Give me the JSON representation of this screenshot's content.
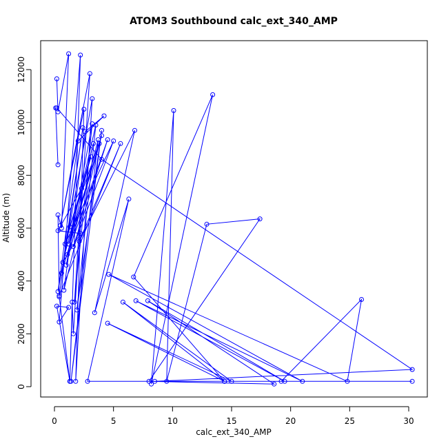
{
  "chart_data": {
    "type": "line",
    "title": "ATOM3 Southbound calc_ext_340_AMP",
    "xlabel": "calc_ext_340_AMP",
    "ylabel": "Altitude (m)",
    "xlim": [
      0,
      30
    ],
    "ylim": [
      0,
      12600
    ],
    "xticks": [
      0,
      5,
      10,
      15,
      20,
      25,
      30
    ],
    "yticks": [
      0,
      2000,
      4000,
      6000,
      8000,
      10000,
      12000
    ],
    "xtick_labels": [
      "0",
      "5",
      "10",
      "15",
      "20",
      "25",
      "30"
    ],
    "ytick_labels": [
      "0",
      "2000",
      "4000",
      "6000",
      "8000",
      "10000",
      "12000"
    ],
    "grid": false,
    "marker": "open-circle",
    "color": "#0000ff",
    "series": [
      {
        "x": [
          0.2,
          0.3,
          1.2,
          0.6,
          0.3,
          0.4,
          1.3,
          0.2,
          1.2,
          0.4,
          2.2,
          1.3,
          1.5,
          1.6,
          3.0,
          0.5,
          2.5,
          1.8,
          3.2,
          0.3,
          2.0,
          4.2,
          2.6,
          0.8,
          3.8,
          1.2,
          3.5,
          1.9,
          4.0,
          1.4,
          3.7,
          1.0,
          3.2,
          1.7,
          2.3,
          0.3,
          2.2,
          0.7,
          3.3,
          1.1,
          4.5,
          1.6,
          5.0,
          0.9,
          3.1,
          1.3,
          4.0,
          0.6,
          2.4,
          0.4,
          5.6,
          2.1,
          6.8,
          3.4,
          6.3,
          2.8,
          14.4,
          4.5,
          15.0,
          5.8,
          14.4,
          6.7,
          13.4,
          8.2,
          10.1,
          9.5,
          12.9,
          17.4,
          8.0,
          18.6,
          7.9,
          19.5,
          6.9,
          21.0,
          4.6,
          24.8,
          26.0,
          19.2,
          30.3,
          8.5,
          30.3,
          4.0,
          0.2,
          0.1,
          0.3
        ],
        "y": [
          11650,
          10400,
          12600,
          6000,
          6500,
          3400,
          200,
          3050,
          3000,
          2450,
          12550,
          200,
          3200,
          2000,
          11850,
          6100,
          10500,
          200,
          10900,
          3600,
          9300,
          10250,
          9650,
          3650,
          9200,
          5400,
          9900,
          2900,
          9700,
          200,
          9350,
          4600,
          9950,
          3200,
          7500,
          5900,
          5800,
          4700,
          9200,
          5000,
          9350,
          5300,
          9300,
          5400,
          8700,
          6050,
          9500,
          4300,
          9800,
          3450,
          9200,
          5500,
          9700,
          2800,
          7100,
          200,
          200,
          2400,
          200,
          3200,
          200,
          4150,
          11050,
          100,
          10450,
          200,
          6150,
          6350,
          200,
          100,
          3250,
          200,
          3250,
          200,
          4250,
          200,
          3300,
          200,
          200,
          200,
          650,
          8600,
          10550,
          10550,
          8400
        ]
      }
    ]
  }
}
